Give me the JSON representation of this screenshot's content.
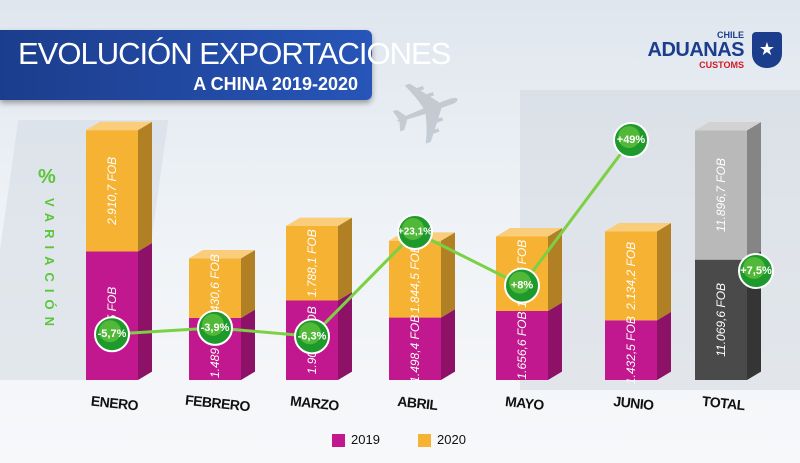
{
  "title": {
    "line1": "EVOLUCIÓN EXPORTACIONES",
    "line2": "A CHINA 2019-2020"
  },
  "logo": {
    "top": "CHILE",
    "main": "ADUANAS",
    "sub": "CUSTOMS"
  },
  "colors": {
    "series_2019": "#c2188f",
    "series_2020": "#f6b233",
    "total_2019": "#4a4a4a",
    "total_2020": "#b9b9b9",
    "variation": "#7bd143",
    "banner": "#1c3d8c"
  },
  "chart_data": {
    "type": "bar",
    "stacked": true,
    "title": "EVOLUCIÓN EXPORTACIONES A CHINA 2019-2020",
    "ylabel": "% VARIACIÓN",
    "categories": [
      "ENERO",
      "FEBRERO",
      "MARZO",
      "ABRIL",
      "MAYO",
      "JUNIO",
      "TOTAL"
    ],
    "series": [
      {
        "name": "2019",
        "values": [
          3085,
          1489,
          1908.1,
          1498.4,
          1656.6,
          1432.5,
          11069.6
        ],
        "labels": [
          "3.085 FOB",
          "1.489 FOB",
          "1.908,1 FOB",
          "1.498,4 FOB",
          "1.656,6 FOB",
          "1.432,5 FOB",
          "11.069,6 FOB"
        ]
      },
      {
        "name": "2020",
        "values": [
          2910.7,
          1430.6,
          1788.1,
          1844.5,
          1788.7,
          2134.2,
          11896.7
        ],
        "labels": [
          "2.910,7 FOB",
          "1.430,6 FOB",
          "1.788,1 FOB",
          "1.844,5 FOB",
          "1.788,7 FOB",
          "2.134,2 FOB",
          "11.896,7 FOB"
        ]
      }
    ],
    "variation": {
      "values": [
        -5.7,
        -3.9,
        -6.3,
        23.1,
        8,
        49,
        7.5
      ],
      "labels": [
        "-5,7%",
        "-3,9%",
        "-6,3%",
        "+23,1%",
        "+8%",
        "+49%",
        "+7,5%"
      ]
    },
    "legend_position": "bottom"
  }
}
